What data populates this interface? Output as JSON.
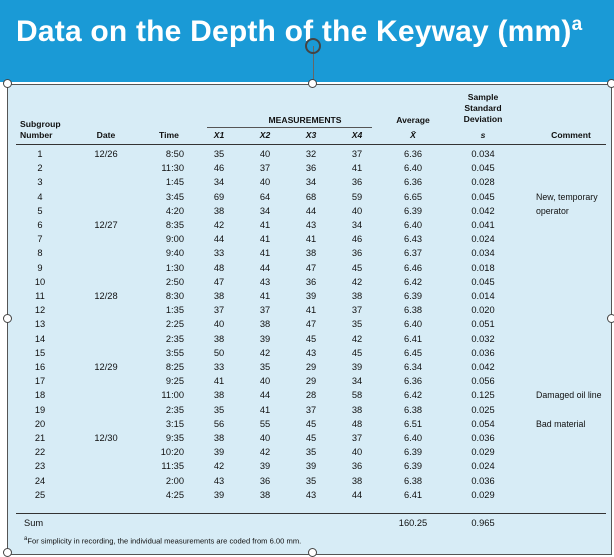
{
  "title": {
    "main": "Data on the Depth of the Keyway (mm)",
    "superscript": "a"
  },
  "headers": {
    "subgroup": [
      "Subgroup",
      "Number"
    ],
    "date": "Date",
    "time": "Time",
    "measurements": "MEASUREMENTS",
    "x": [
      "X1",
      "X2",
      "X3",
      "X4"
    ],
    "average": [
      "Average",
      "X̄"
    ],
    "sd": [
      "Sample",
      "Standard",
      "Deviation",
      "s"
    ],
    "comment": "Comment"
  },
  "rows": [
    {
      "n": "1",
      "date": "12/26",
      "time": "8:50",
      "x1": "35",
      "x2": "40",
      "x3": "32",
      "x4": "37",
      "avg": "6.36",
      "s": "0.034",
      "comment": ""
    },
    {
      "n": "2",
      "date": "",
      "time": "11:30",
      "x1": "46",
      "x2": "37",
      "x3": "36",
      "x4": "41",
      "avg": "6.40",
      "s": "0.045",
      "comment": ""
    },
    {
      "n": "3",
      "date": "",
      "time": "1:45",
      "x1": "34",
      "x2": "40",
      "x3": "34",
      "x4": "36",
      "avg": "6.36",
      "s": "0.028",
      "comment": ""
    },
    {
      "n": "4",
      "date": "",
      "time": "3:45",
      "x1": "69",
      "x2": "64",
      "x3": "68",
      "x4": "59",
      "avg": "6.65",
      "s": "0.045",
      "comment": "New, temporary"
    },
    {
      "n": "5",
      "date": "",
      "time": "4:20",
      "x1": "38",
      "x2": "34",
      "x3": "44",
      "x4": "40",
      "avg": "6.39",
      "s": "0.042",
      "comment": "operator"
    },
    {
      "n": "6",
      "date": "12/27",
      "time": "8:35",
      "x1": "42",
      "x2": "41",
      "x3": "43",
      "x4": "34",
      "avg": "6.40",
      "s": "0.041",
      "comment": ""
    },
    {
      "n": "7",
      "date": "",
      "time": "9:00",
      "x1": "44",
      "x2": "41",
      "x3": "41",
      "x4": "46",
      "avg": "6.43",
      "s": "0.024",
      "comment": ""
    },
    {
      "n": "8",
      "date": "",
      "time": "9:40",
      "x1": "33",
      "x2": "41",
      "x3": "38",
      "x4": "36",
      "avg": "6.37",
      "s": "0.034",
      "comment": ""
    },
    {
      "n": "9",
      "date": "",
      "time": "1:30",
      "x1": "48",
      "x2": "44",
      "x3": "47",
      "x4": "45",
      "avg": "6.46",
      "s": "0.018",
      "comment": ""
    },
    {
      "n": "10",
      "date": "",
      "time": "2:50",
      "x1": "47",
      "x2": "43",
      "x3": "36",
      "x4": "42",
      "avg": "6.42",
      "s": "0.045",
      "comment": ""
    },
    {
      "n": "11",
      "date": "12/28",
      "time": "8:30",
      "x1": "38",
      "x2": "41",
      "x3": "39",
      "x4": "38",
      "avg": "6.39",
      "s": "0.014",
      "comment": ""
    },
    {
      "n": "12",
      "date": "",
      "time": "1:35",
      "x1": "37",
      "x2": "37",
      "x3": "41",
      "x4": "37",
      "avg": "6.38",
      "s": "0.020",
      "comment": ""
    },
    {
      "n": "13",
      "date": "",
      "time": "2:25",
      "x1": "40",
      "x2": "38",
      "x3": "47",
      "x4": "35",
      "avg": "6.40",
      "s": "0.051",
      "comment": ""
    },
    {
      "n": "14",
      "date": "",
      "time": "2:35",
      "x1": "38",
      "x2": "39",
      "x3": "45",
      "x4": "42",
      "avg": "6.41",
      "s": "0.032",
      "comment": ""
    },
    {
      "n": "15",
      "date": "",
      "time": "3:55",
      "x1": "50",
      "x2": "42",
      "x3": "43",
      "x4": "45",
      "avg": "6.45",
      "s": "0.036",
      "comment": ""
    },
    {
      "n": "16",
      "date": "12/29",
      "time": "8:25",
      "x1": "33",
      "x2": "35",
      "x3": "29",
      "x4": "39",
      "avg": "6.34",
      "s": "0.042",
      "comment": ""
    },
    {
      "n": "17",
      "date": "",
      "time": "9:25",
      "x1": "41",
      "x2": "40",
      "x3": "29",
      "x4": "34",
      "avg": "6.36",
      "s": "0.056",
      "comment": ""
    },
    {
      "n": "18",
      "date": "",
      "time": "11:00",
      "x1": "38",
      "x2": "44",
      "x3": "28",
      "x4": "58",
      "avg": "6.42",
      "s": "0.125",
      "comment": "Damaged oil line"
    },
    {
      "n": "19",
      "date": "",
      "time": "2:35",
      "x1": "35",
      "x2": "41",
      "x3": "37",
      "x4": "38",
      "avg": "6.38",
      "s": "0.025",
      "comment": ""
    },
    {
      "n": "20",
      "date": "",
      "time": "3:15",
      "x1": "56",
      "x2": "55",
      "x3": "45",
      "x4": "48",
      "avg": "6.51",
      "s": "0.054",
      "comment": "Bad material"
    },
    {
      "n": "21",
      "date": "12/30",
      "time": "9:35",
      "x1": "38",
      "x2": "40",
      "x3": "45",
      "x4": "37",
      "avg": "6.40",
      "s": "0.036",
      "comment": ""
    },
    {
      "n": "22",
      "date": "",
      "time": "10:20",
      "x1": "39",
      "x2": "42",
      "x3": "35",
      "x4": "40",
      "avg": "6.39",
      "s": "0.029",
      "comment": ""
    },
    {
      "n": "23",
      "date": "",
      "time": "11:35",
      "x1": "42",
      "x2": "39",
      "x3": "39",
      "x4": "36",
      "avg": "6.39",
      "s": "0.024",
      "comment": ""
    },
    {
      "n": "24",
      "date": "",
      "time": "2:00",
      "x1": "43",
      "x2": "36",
      "x3": "35",
      "x4": "38",
      "avg": "6.38",
      "s": "0.036",
      "comment": ""
    },
    {
      "n": "25",
      "date": "",
      "time": "4:25",
      "x1": "39",
      "x2": "38",
      "x3": "43",
      "x4": "44",
      "avg": "6.41",
      "s": "0.029",
      "comment": ""
    }
  ],
  "sum": {
    "label": "Sum",
    "avg": "160.25",
    "s": "0.965"
  },
  "footnote": {
    "marker": "a",
    "text": "For simplicity in recording, the individual measurements are coded from 6.00 mm."
  },
  "colors": {
    "title_bar": "#1a9ad6",
    "panel": "#d7ecf6"
  },
  "icons": [
    "rotate-handle-icon",
    "resize-handle-icon"
  ]
}
